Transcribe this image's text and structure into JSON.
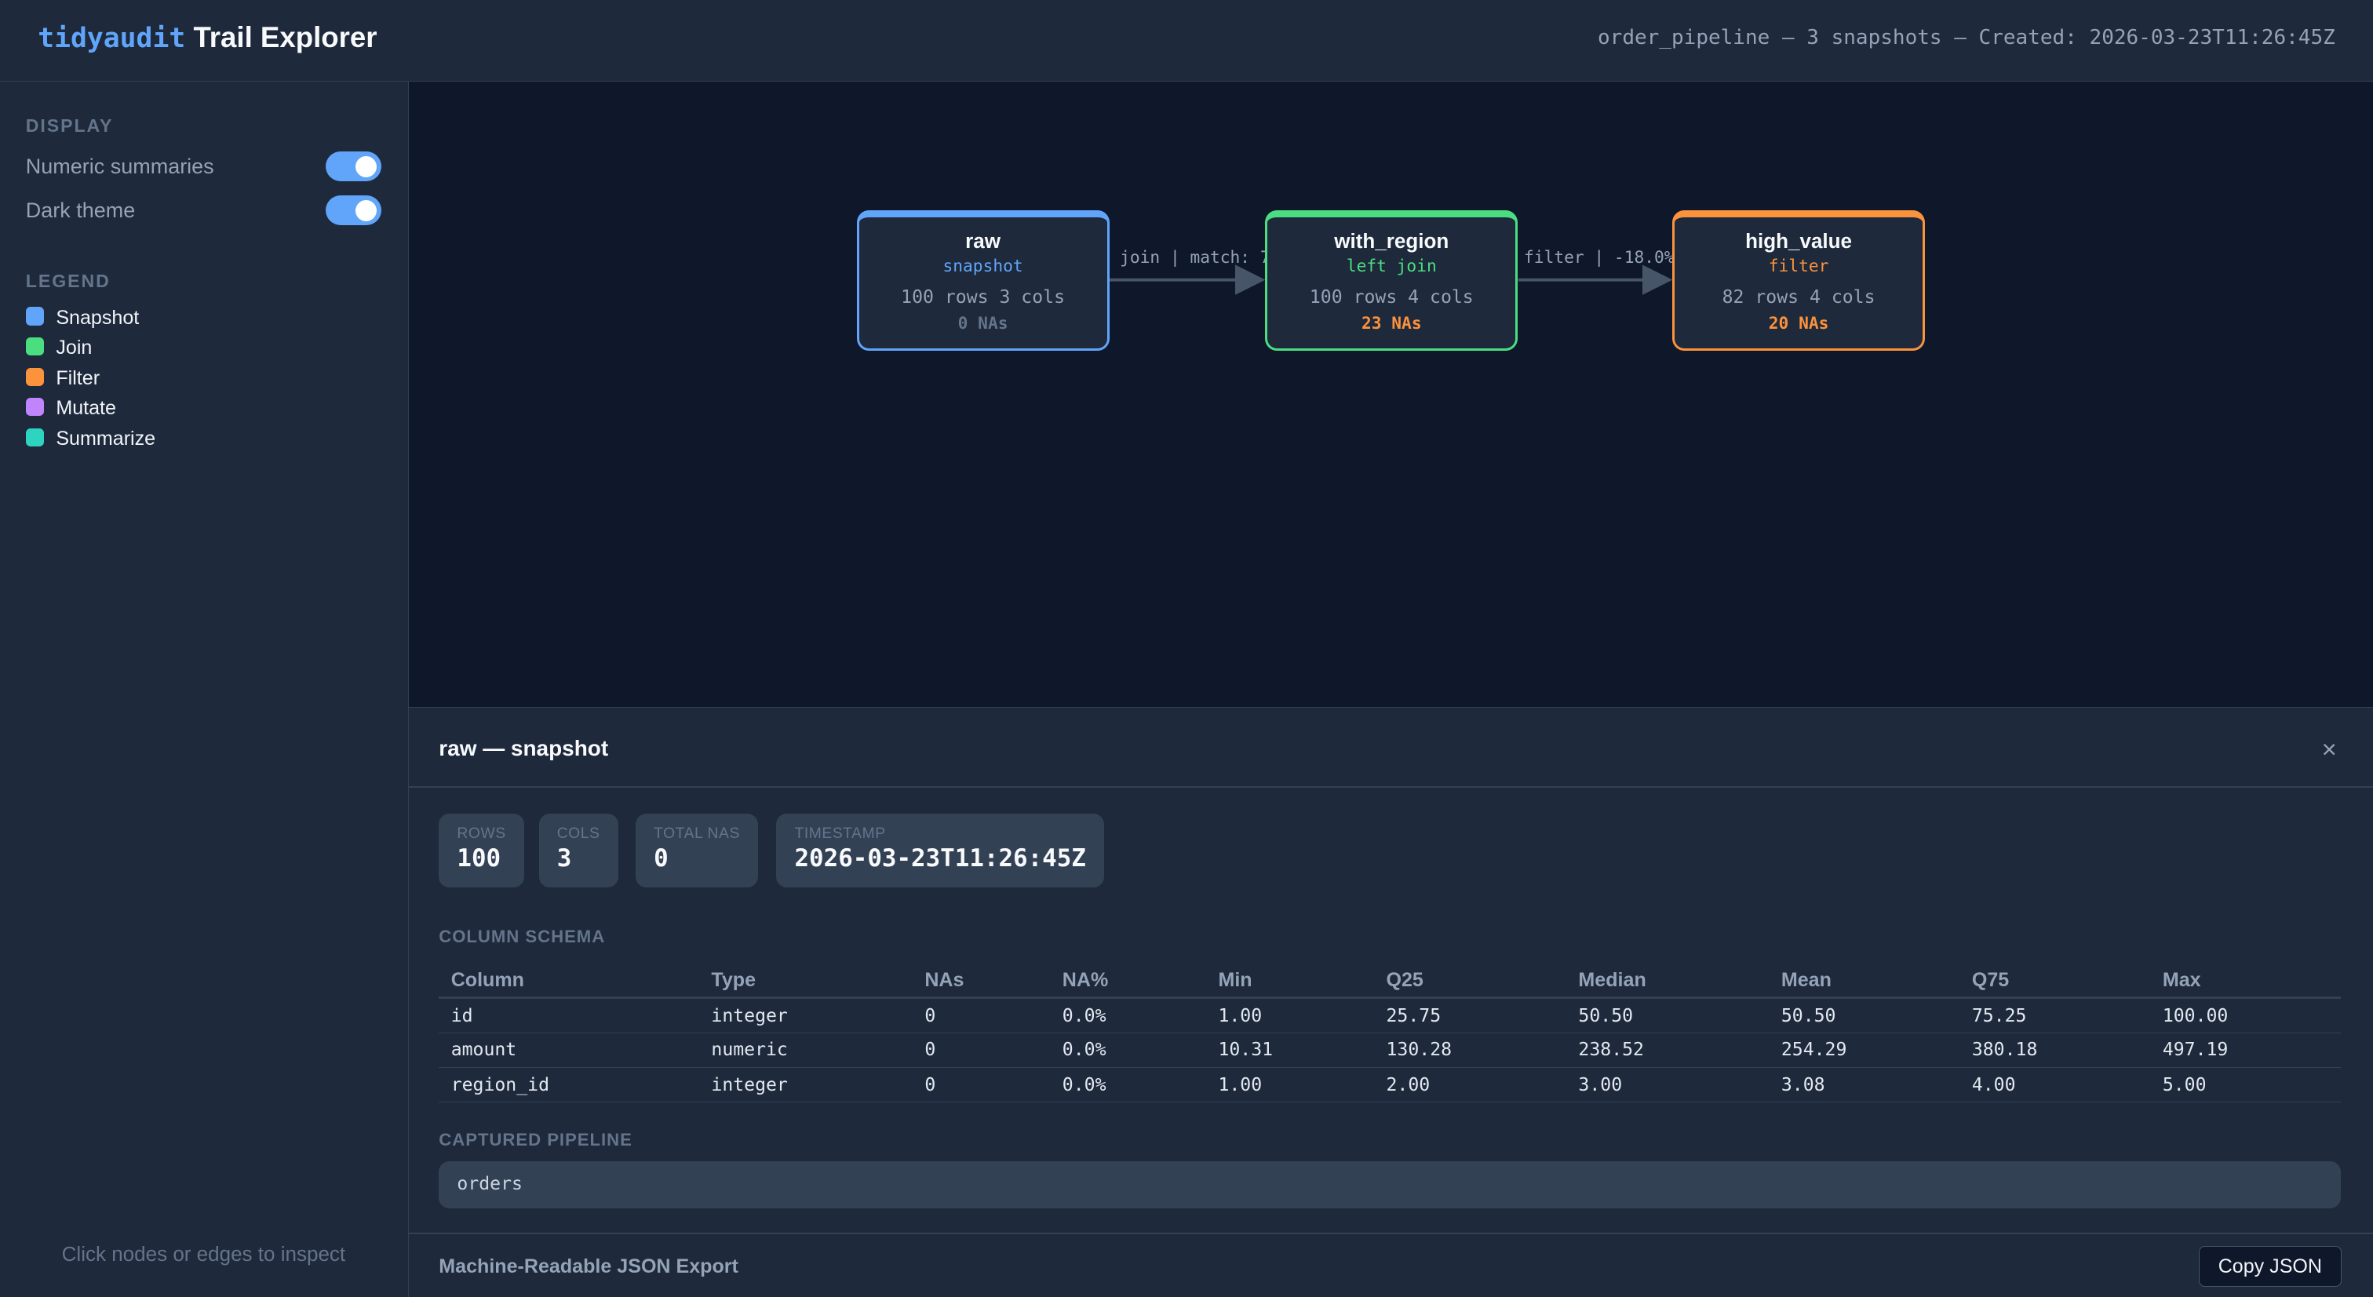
{
  "header": {
    "brand_mono": "tidyaudit",
    "brand_title": "Trail Explorer",
    "meta": "order_pipeline — 3 snapshots — Created: 2026-03-23T11:26:45Z"
  },
  "sidebar": {
    "display_label": "DISPLAY",
    "toggles": [
      {
        "label": "Numeric summaries",
        "on": true
      },
      {
        "label": "Dark theme",
        "on": true
      }
    ],
    "legend_label": "LEGEND",
    "legend": [
      {
        "label": "Snapshot",
        "color": "#60a5fa"
      },
      {
        "label": "Join",
        "color": "#4ade80"
      },
      {
        "label": "Filter",
        "color": "#fb923c"
      },
      {
        "label": "Mutate",
        "color": "#c084fc"
      },
      {
        "label": "Summarize",
        "color": "#2dd4bf"
      }
    ],
    "hint": "Click nodes or edges to inspect"
  },
  "graph": {
    "nodes": [
      {
        "name": "raw",
        "type": "snapshot",
        "rows_cols": "100 rows 3 cols",
        "nas": "0 NAs",
        "color": "#60a5fa",
        "na_color": "#64748b"
      },
      {
        "name": "with_region",
        "type": "left join",
        "rows_cols": "100 rows 4 cols",
        "nas": "23 NAs",
        "color": "#4ade80",
        "na_color": "#fb923c"
      },
      {
        "name": "high_value",
        "type": "filter",
        "rows_cols": "82 rows 4 cols",
        "nas": "20 NAs",
        "color": "#fb923c",
        "na_color": "#fb923c"
      }
    ],
    "edges": [
      {
        "label": "join | match: 7"
      },
      {
        "label": "filter | -18.0%"
      }
    ]
  },
  "detail": {
    "title": "raw — snapshot",
    "close": "×",
    "stats": [
      {
        "label": "ROWS",
        "value": "100"
      },
      {
        "label": "COLS",
        "value": "3"
      },
      {
        "label": "TOTAL NAS",
        "value": "0"
      },
      {
        "label": "TIMESTAMP",
        "value": "2026-03-23T11:26:45Z"
      }
    ],
    "schema_label": "COLUMN SCHEMA",
    "columns": [
      "Column",
      "Type",
      "NAs",
      "NA%",
      "Min",
      "Q25",
      "Median",
      "Mean",
      "Q75",
      "Max"
    ],
    "rows": [
      [
        "id",
        "integer",
        "0",
        "0.0%",
        "1.00",
        "25.75",
        "50.50",
        "50.50",
        "75.25",
        "100.00"
      ],
      [
        "amount",
        "numeric",
        "0",
        "0.0%",
        "10.31",
        "130.28",
        "238.52",
        "254.29",
        "380.18",
        "497.19"
      ],
      [
        "region_id",
        "integer",
        "0",
        "0.0%",
        "1.00",
        "2.00",
        "3.00",
        "3.08",
        "4.00",
        "5.00"
      ]
    ],
    "pipeline_label": "CAPTURED PIPELINE",
    "pipeline": "orders",
    "export_label": "Machine-Readable JSON Export",
    "copy_label": "Copy JSON"
  }
}
